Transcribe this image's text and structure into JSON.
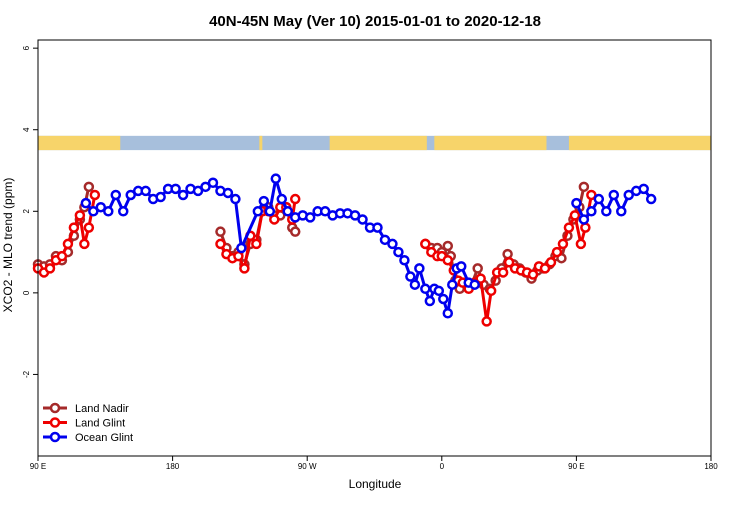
{
  "chart_data": {
    "type": "line",
    "title": "40N-45N May (Ver 10)   2015-01-01 to 2020-12-18",
    "xlabel": "Longitude",
    "ylabel": "XCO2 - MLO trend (ppm)",
    "xlim": [
      90,
      450
    ],
    "ylim": [
      -4,
      6.2
    ],
    "x_ticks": [
      {
        "value": 90,
        "label": "90 E"
      },
      {
        "value": 180,
        "label": "180"
      },
      {
        "value": 270,
        "label": "90 W"
      },
      {
        "value": 360,
        "label": "0"
      },
      {
        "value": 450,
        "label": "90 E"
      },
      {
        "value": 540,
        "label": "180"
      }
    ],
    "y_ticks": [
      {
        "value": -2,
        "label": "-2"
      },
      {
        "value": 0,
        "label": "0"
      },
      {
        "value": 2,
        "label": "2"
      },
      {
        "value": 4,
        "label": "4"
      },
      {
        "value": 6,
        "label": "6"
      }
    ],
    "x_domain": [
      90,
      540
    ],
    "grid": false,
    "legend_position": "bottom-left",
    "land_sea_band": {
      "y_range": [
        3.5,
        3.85
      ],
      "ocean_color": "#a7bfdc",
      "land_color": "#f7d46a",
      "land_segments": [
        [
          90,
          145
        ],
        [
          238,
          240
        ],
        [
          285,
          350
        ],
        [
          355,
          430
        ],
        [
          445,
          545
        ]
      ]
    },
    "series": [
      {
        "name": "Land Nadir",
        "color": "#a52a2a",
        "points": [
          [
            90,
            0.7
          ],
          [
            94,
            0.65
          ],
          [
            98,
            0.7
          ],
          [
            102,
            0.9
          ],
          [
            106,
            0.8
          ],
          [
            110,
            1.0
          ],
          [
            114,
            1.4
          ],
          [
            118,
            1.8
          ],
          [
            121,
            2.1
          ],
          [
            124,
            2.6
          ],
          [
            212,
            1.5
          ],
          [
            216,
            1.1
          ],
          [
            220,
            0.9
          ],
          [
            224,
            1.0
          ],
          [
            228,
            0.7
          ],
          [
            232,
            1.2
          ],
          [
            236,
            1.3
          ],
          [
            240,
            2.0
          ],
          [
            244,
            2.1
          ],
          [
            248,
            1.9
          ],
          [
            252,
            1.9
          ],
          [
            256,
            2.1
          ],
          [
            260,
            1.6
          ],
          [
            262,
            1.5
          ],
          [
            349,
            1.2
          ],
          [
            353,
            1.1
          ],
          [
            357,
            1.1
          ],
          [
            360,
            1.0
          ],
          [
            364,
            1.15
          ],
          [
            366,
            0.9
          ],
          [
            369,
            0.3
          ],
          [
            372,
            0.1
          ],
          [
            376,
            0.25
          ],
          [
            380,
            0.2
          ],
          [
            384,
            0.6
          ],
          [
            388,
            0.2
          ],
          [
            392,
            0.1
          ],
          [
            396,
            0.3
          ],
          [
            400,
            0.6
          ],
          [
            404,
            0.95
          ],
          [
            408,
            0.7
          ],
          [
            412,
            0.6
          ],
          [
            416,
            0.5
          ],
          [
            420,
            0.35
          ],
          [
            424,
            0.55
          ],
          [
            428,
            0.6
          ],
          [
            432,
            0.7
          ],
          [
            436,
            0.9
          ],
          [
            440,
            0.85
          ],
          [
            444,
            1.4
          ],
          [
            448,
            1.8
          ],
          [
            452,
            2.1
          ],
          [
            455,
            2.6
          ]
        ]
      },
      {
        "name": "Land Glint",
        "color": "#ee0000",
        "points": [
          [
            90,
            0.6
          ],
          [
            94,
            0.5
          ],
          [
            98,
            0.6
          ],
          [
            102,
            0.8
          ],
          [
            106,
            0.9
          ],
          [
            110,
            1.2
          ],
          [
            114,
            1.6
          ],
          [
            118,
            1.9
          ],
          [
            121,
            1.2
          ],
          [
            124,
            1.6
          ],
          [
            128,
            2.4
          ],
          [
            212,
            1.2
          ],
          [
            216,
            0.95
          ],
          [
            220,
            0.85
          ],
          [
            224,
            0.9
          ],
          [
            228,
            0.6
          ],
          [
            232,
            1.4
          ],
          [
            236,
            1.2
          ],
          [
            240,
            2.0
          ],
          [
            244,
            2.0
          ],
          [
            248,
            1.8
          ],
          [
            252,
            2.1
          ],
          [
            256,
            2.1
          ],
          [
            260,
            1.8
          ],
          [
            262,
            2.3
          ],
          [
            349,
            1.2
          ],
          [
            353,
            1.0
          ],
          [
            357,
            0.9
          ],
          [
            360,
            0.9
          ],
          [
            364,
            0.8
          ],
          [
            368,
            0.55
          ],
          [
            371,
            0.3
          ],
          [
            374,
            0.25
          ],
          [
            378,
            0.1
          ],
          [
            382,
            0.25
          ],
          [
            386,
            0.35
          ],
          [
            390,
            -0.7
          ],
          [
            393,
            0.05
          ],
          [
            397,
            0.5
          ],
          [
            401,
            0.5
          ],
          [
            405,
            0.75
          ],
          [
            409,
            0.6
          ],
          [
            413,
            0.55
          ],
          [
            417,
            0.5
          ],
          [
            421,
            0.45
          ],
          [
            425,
            0.65
          ],
          [
            429,
            0.6
          ],
          [
            433,
            0.75
          ],
          [
            437,
            1.0
          ],
          [
            441,
            1.2
          ],
          [
            445,
            1.6
          ],
          [
            449,
            1.9
          ],
          [
            453,
            1.2
          ],
          [
            456,
            1.6
          ],
          [
            460,
            2.4
          ]
        ]
      },
      {
        "name": "Ocean Glint",
        "color": "#0000ee",
        "points": [
          [
            122,
            2.2
          ],
          [
            127,
            2.0
          ],
          [
            132,
            2.1
          ],
          [
            137,
            2.0
          ],
          [
            142,
            2.4
          ],
          [
            147,
            2.0
          ],
          [
            152,
            2.4
          ],
          [
            157,
            2.5
          ],
          [
            162,
            2.5
          ],
          [
            167,
            2.3
          ],
          [
            172,
            2.35
          ],
          [
            177,
            2.55
          ],
          [
            182,
            2.55
          ],
          [
            187,
            2.4
          ],
          [
            192,
            2.55
          ],
          [
            197,
            2.5
          ],
          [
            202,
            2.6
          ],
          [
            207,
            2.7
          ],
          [
            212,
            2.5
          ],
          [
            217,
            2.45
          ],
          [
            222,
            2.3
          ],
          [
            226,
            1.1
          ],
          [
            237,
            2.0
          ],
          [
            241,
            2.25
          ],
          [
            245,
            2.0
          ],
          [
            249,
            2.8
          ],
          [
            253,
            2.3
          ],
          [
            257,
            2.0
          ],
          [
            262,
            1.85
          ],
          [
            267,
            1.9
          ],
          [
            272,
            1.85
          ],
          [
            277,
            2.0
          ],
          [
            282,
            2.0
          ],
          [
            287,
            1.9
          ],
          [
            292,
            1.95
          ],
          [
            297,
            1.95
          ],
          [
            302,
            1.9
          ],
          [
            307,
            1.8
          ],
          [
            312,
            1.6
          ],
          [
            317,
            1.6
          ],
          [
            322,
            1.3
          ],
          [
            327,
            1.2
          ],
          [
            331,
            1.0
          ],
          [
            335,
            0.8
          ],
          [
            339,
            0.4
          ],
          [
            342,
            0.2
          ],
          [
            345,
            0.6
          ],
          [
            349,
            0.1
          ],
          [
            352,
            -0.2
          ],
          [
            355,
            0.1
          ],
          [
            358,
            0.05
          ],
          [
            361,
            -0.15
          ],
          [
            364,
            -0.5
          ],
          [
            367,
            0.2
          ],
          [
            370,
            0.6
          ],
          [
            373,
            0.65
          ],
          [
            378,
            0.25
          ],
          [
            382,
            0.2
          ],
          [
            450,
            2.2
          ],
          [
            455,
            1.8
          ],
          [
            460,
            2.0
          ],
          [
            465,
            2.3
          ],
          [
            470,
            2.0
          ],
          [
            475,
            2.4
          ],
          [
            480,
            2.0
          ],
          [
            485,
            2.4
          ],
          [
            490,
            2.5
          ],
          [
            495,
            2.55
          ],
          [
            500,
            2.3
          ]
        ]
      }
    ]
  }
}
